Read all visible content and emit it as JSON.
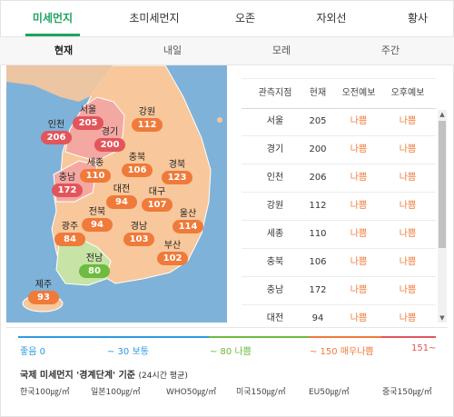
{
  "tabs": [
    "미세먼지",
    "초미세먼지",
    "오존",
    "자외선",
    "황사"
  ],
  "subtabs": [
    "현재",
    "내일",
    "모레",
    "주간"
  ],
  "cities": [
    {
      "name": "서울",
      "value": "205",
      "level": "red"
    },
    {
      "name": "인천",
      "value": "206",
      "level": "red"
    },
    {
      "name": "경기",
      "value": "200",
      "level": "red"
    },
    {
      "name": "강원",
      "value": "112",
      "level": "orange"
    },
    {
      "name": "세종",
      "value": "110",
      "level": "orange"
    },
    {
      "name": "충북",
      "value": "106",
      "level": "orange"
    },
    {
      "name": "경북",
      "value": "123",
      "level": "orange"
    },
    {
      "name": "충남",
      "value": "172",
      "level": "red"
    },
    {
      "name": "대전",
      "value": "94",
      "level": "orange"
    },
    {
      "name": "대구",
      "value": "107",
      "level": "orange"
    },
    {
      "name": "전북",
      "value": "94",
      "level": "orange"
    },
    {
      "name": "울산",
      "value": "114",
      "level": "orange"
    },
    {
      "name": "광주",
      "value": "84",
      "level": "orange"
    },
    {
      "name": "경남",
      "value": "103",
      "level": "orange"
    },
    {
      "name": "부산",
      "value": "102",
      "level": "orange"
    },
    {
      "name": "전남",
      "value": "80",
      "level": "green"
    },
    {
      "name": "제주",
      "value": "93",
      "level": "orange"
    }
  ],
  "table": {
    "headers": [
      "관측지점",
      "현재",
      "오전예보",
      "오후예보"
    ],
    "rows": [
      [
        "서울",
        "205",
        "나쁨",
        "나쁨"
      ],
      [
        "경기",
        "200",
        "나쁨",
        "나쁨"
      ],
      [
        "인천",
        "206",
        "나쁨",
        "나쁨"
      ],
      [
        "강원",
        "112",
        "나쁨",
        "나쁨"
      ],
      [
        "세종",
        "110",
        "나쁨",
        "나쁨"
      ],
      [
        "충북",
        "106",
        "나쁨",
        "나쁨"
      ],
      [
        "충남",
        "172",
        "나쁨",
        "나쁨"
      ],
      [
        "대전",
        "94",
        "나쁨",
        "나쁨"
      ]
    ]
  },
  "legend": [
    {
      "text": "좋음 0",
      "color": "#2e9ae0"
    },
    {
      "text": "~ 30 보통",
      "color": "#2e9ae0"
    },
    {
      "text": "~ 80 나쁨",
      "color": "#6dbb3f"
    },
    {
      "text": "~ 150 매우나쁨",
      "color": "#ef7a3a"
    },
    {
      "text": "151~",
      "color": "#e2555b"
    }
  ],
  "standard": {
    "title": "국제 미세먼지 '경계단계' 기준",
    "subtitle": "(24시간 평균)",
    "items": [
      "한국100㎍/㎥",
      "일본100㎍/㎥",
      "WHO50㎍/㎥",
      "미국150㎍/㎥",
      "EU50㎍/㎥",
      "중국150㎍/㎥"
    ]
  },
  "colors": {
    "accent": "#1ea362",
    "bad": "#ef7a3a",
    "very_bad": "#e2555b",
    "good": "#6dbb3f"
  }
}
